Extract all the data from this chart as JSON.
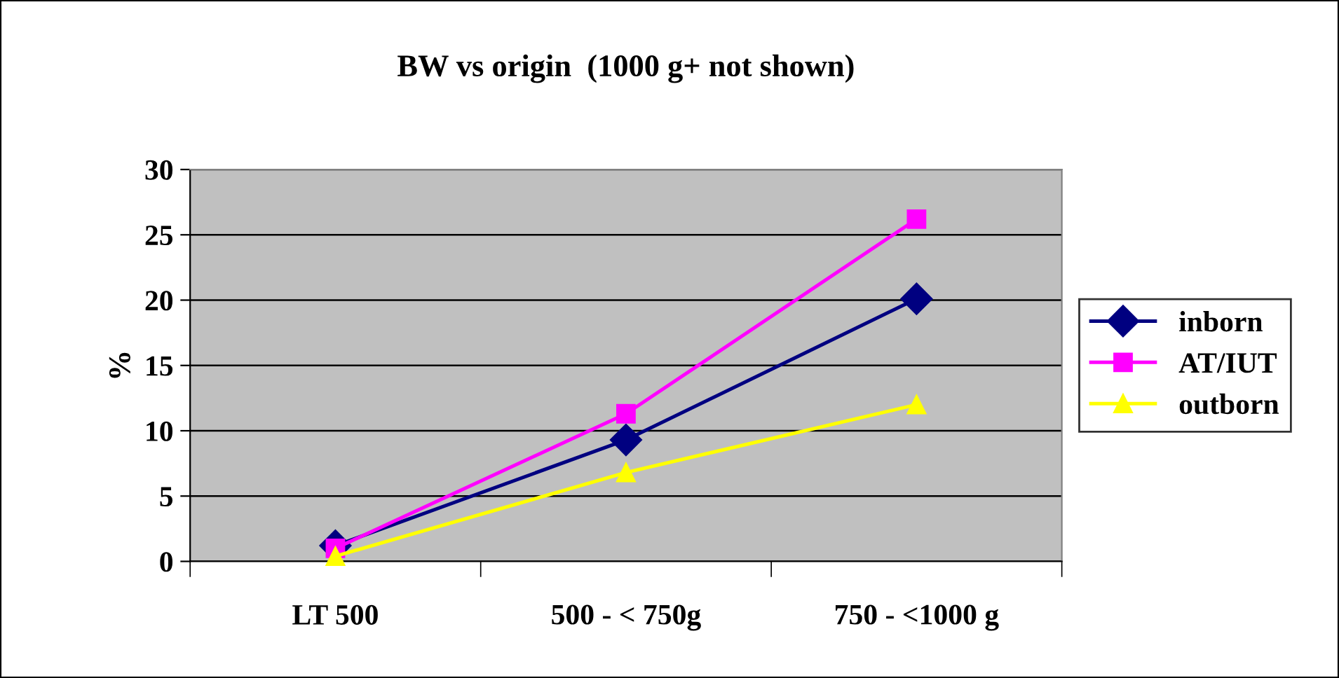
{
  "chart_data": {
    "type": "line",
    "title": "BW vs origin  (1000 g+ not shown)",
    "ylabel": "%",
    "categories": [
      "LT 500",
      "500 - < 750g",
      "750 - <1000 g"
    ],
    "series": [
      {
        "name": "inborn",
        "color": "#000080",
        "values": [
          1.2,
          9.3,
          20.1
        ],
        "marker": "diamond"
      },
      {
        "name": "AT/IUT",
        "color": "#ff00ff",
        "values": [
          1.0,
          11.3,
          26.2
        ],
        "marker": "square"
      },
      {
        "name": "outborn",
        "color": "#ffff00",
        "values": [
          0.4,
          6.8,
          12.0
        ],
        "marker": "triangle"
      }
    ],
    "ylim": [
      0,
      30
    ],
    "yticks": [
      0,
      5,
      10,
      15,
      20,
      25,
      30
    ],
    "grid": "y",
    "legend": "right",
    "line_style": "solid"
  }
}
